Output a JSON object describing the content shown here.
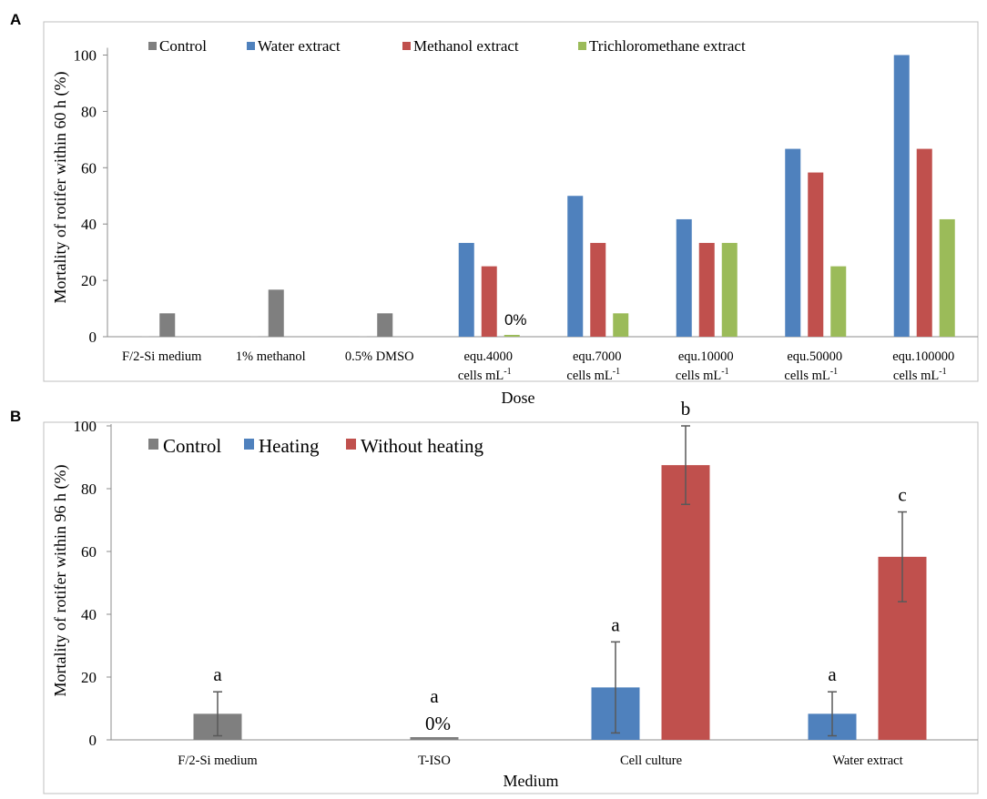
{
  "colors": {
    "control": "#7f7f7f",
    "water": "#4f81bd",
    "methanol": "#c0504d",
    "trichloromethane": "#9bbb59",
    "heating": "#4f81bd",
    "without_heating": "#c0504d",
    "axis": "#8c8c8c",
    "frame": "#bfbfbf",
    "errorbar": "#595959"
  },
  "chart_data": [
    {
      "panel": "A",
      "type": "bar",
      "ylabel": "Mortality of rotifer within 60 h (%)",
      "xlabel": "Dose",
      "ylim": [
        0,
        100
      ],
      "yticks": [
        0,
        20,
        40,
        60,
        80,
        100
      ],
      "legend": "top",
      "categories": [
        [
          "F/2-Si medium"
        ],
        [
          "1% methanol"
        ],
        [
          "0.5% DMSO"
        ],
        [
          "equ.4000",
          "cells mL"
        ],
        [
          "equ.7000",
          "cells mL"
        ],
        [
          "equ.10000",
          "cells mL"
        ],
        [
          "equ.50000",
          "cells mL"
        ],
        [
          "equ.100000",
          "cells mL"
        ]
      ],
      "unit_superscript": "-1",
      "series": [
        {
          "name": "Control",
          "color_key": "control",
          "values": [
            8.3,
            16.7,
            8.3,
            null,
            null,
            null,
            null,
            null
          ]
        },
        {
          "name": "Water extract",
          "color_key": "water",
          "values": [
            null,
            null,
            null,
            33.3,
            50,
            41.7,
            66.7,
            100
          ]
        },
        {
          "name": "Methanol extract",
          "color_key": "methanol",
          "values": [
            null,
            null,
            null,
            25,
            33.3,
            33.3,
            58.3,
            66.7
          ]
        },
        {
          "name": "Trichloromethane extract",
          "color_key": "trichloromethane",
          "values": [
            null,
            null,
            null,
            0,
            8.3,
            33.3,
            25,
            41.7
          ]
        }
      ],
      "annotations": [
        {
          "category_index": 3,
          "series": "Trichloromethane extract",
          "text": "0%"
        }
      ]
    },
    {
      "panel": "B",
      "type": "bar",
      "ylabel": "Mortality of rotifer within 96 h (%)",
      "xlabel": "Medium",
      "ylim": [
        0,
        100
      ],
      "yticks": [
        0,
        20,
        40,
        60,
        80,
        100
      ],
      "legend": "top-left",
      "categories": [
        "F/2-Si medium",
        "T-ISO",
        "Cell culture",
        "Water extract"
      ],
      "series": [
        {
          "name": "Control",
          "color_key": "control",
          "values": [
            8.3,
            0,
            null,
            null
          ],
          "errors": [
            7,
            0,
            null,
            null
          ],
          "labels": [
            "a",
            "a",
            null,
            null
          ]
        },
        {
          "name": "Heating",
          "color_key": "heating",
          "values": [
            null,
            null,
            16.7,
            8.3
          ],
          "errors": [
            null,
            null,
            14.5,
            7
          ],
          "labels": [
            null,
            null,
            "a",
            "a"
          ]
        },
        {
          "name": "Without heating",
          "color_key": "without_heating",
          "values": [
            null,
            null,
            87.5,
            58.3
          ],
          "errors": [
            null,
            null,
            12.5,
            14.3
          ],
          "labels": [
            null,
            null,
            "b",
            "c"
          ]
        }
      ],
      "annotations": [
        {
          "category_index": 1,
          "series": "Control",
          "text": "0%"
        }
      ]
    }
  ]
}
